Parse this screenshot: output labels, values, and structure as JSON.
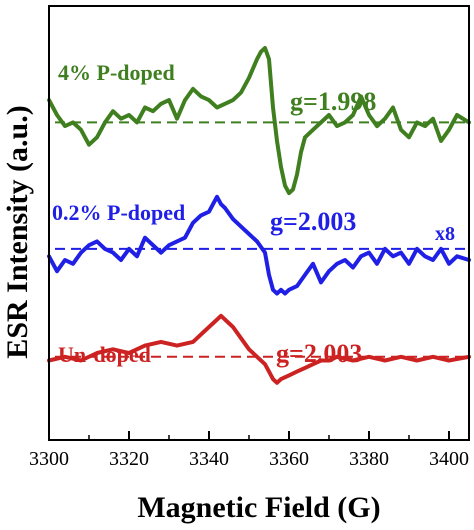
{
  "chart_data": {
    "type": "line",
    "xlabel": "Magnetic Field (G)",
    "ylabel": "ESR Intensity (a.u.)",
    "xlim": [
      3300,
      3405
    ],
    "x_ticks": [
      3300,
      3320,
      3340,
      3360,
      3380,
      3400
    ],
    "x_tick_labels": [
      "3300",
      "3320",
      "3340",
      "3360",
      "3380",
      "3400"
    ],
    "y_ticks_shown": false,
    "grid": false,
    "baseline_style": "dashed",
    "series": [
      {
        "name": "4% P-doped",
        "color": "#3f7f1f",
        "baseline": 0.8,
        "annotation": "g=1.998",
        "x": [
          3300,
          3302,
          3304,
          3306,
          3308,
          3310,
          3312,
          3314,
          3316,
          3318,
          3320,
          3322,
          3324,
          3326,
          3328,
          3330,
          3332,
          3334,
          3336,
          3338,
          3340,
          3342,
          3344,
          3346,
          3348,
          3350,
          3352,
          3353,
          3354,
          3355,
          3356,
          3357,
          3358,
          3359,
          3360,
          3361,
          3362,
          3363,
          3364,
          3366,
          3368,
          3370,
          3372,
          3374,
          3376,
          3378,
          3380,
          3382,
          3384,
          3386,
          3388,
          3390,
          3392,
          3394,
          3396,
          3398,
          3400,
          3402,
          3405
        ],
        "y": [
          0.86,
          0.82,
          0.79,
          0.8,
          0.78,
          0.74,
          0.76,
          0.8,
          0.83,
          0.81,
          0.82,
          0.8,
          0.84,
          0.83,
          0.85,
          0.86,
          0.81,
          0.86,
          0.89,
          0.87,
          0.86,
          0.84,
          0.85,
          0.86,
          0.88,
          0.92,
          0.97,
          0.99,
          1.0,
          0.97,
          0.84,
          0.75,
          0.68,
          0.63,
          0.61,
          0.62,
          0.66,
          0.72,
          0.76,
          0.78,
          0.8,
          0.82,
          0.79,
          0.8,
          0.82,
          0.87,
          0.82,
          0.79,
          0.81,
          0.84,
          0.78,
          0.76,
          0.8,
          0.79,
          0.81,
          0.75,
          0.78,
          0.82,
          0.8
        ]
      },
      {
        "name": "0.2% P-doped",
        "color": "#1f1fe6",
        "baseline": 0.46,
        "annotation": "g=2.003",
        "scale_label": "x8",
        "x": [
          3300,
          3302,
          3304,
          3306,
          3308,
          3310,
          3312,
          3314,
          3316,
          3318,
          3320,
          3322,
          3324,
          3326,
          3328,
          3330,
          3332,
          3334,
          3336,
          3338,
          3340,
          3341,
          3342,
          3343,
          3344,
          3346,
          3348,
          3350,
          3352,
          3354,
          3355,
          3356,
          3357,
          3358,
          3359,
          3360,
          3362,
          3364,
          3366,
          3368,
          3370,
          3372,
          3374,
          3376,
          3378,
          3380,
          3382,
          3384,
          3386,
          3388,
          3390,
          3392,
          3394,
          3396,
          3398,
          3400,
          3402,
          3405
        ],
        "y": [
          0.44,
          0.4,
          0.43,
          0.42,
          0.45,
          0.47,
          0.48,
          0.46,
          0.45,
          0.43,
          0.46,
          0.44,
          0.49,
          0.47,
          0.45,
          0.47,
          0.48,
          0.49,
          0.53,
          0.55,
          0.56,
          0.58,
          0.6,
          0.58,
          0.57,
          0.54,
          0.52,
          0.5,
          0.48,
          0.45,
          0.39,
          0.35,
          0.34,
          0.35,
          0.34,
          0.35,
          0.36,
          0.39,
          0.42,
          0.37,
          0.4,
          0.42,
          0.43,
          0.41,
          0.44,
          0.45,
          0.42,
          0.46,
          0.44,
          0.45,
          0.42,
          0.46,
          0.44,
          0.43,
          0.46,
          0.42,
          0.44,
          0.43
        ]
      },
      {
        "name": "Un-doped",
        "color": "#cc2222",
        "baseline": 0.17,
        "annotation": "g=2.003",
        "x": [
          3300,
          3304,
          3308,
          3312,
          3316,
          3320,
          3324,
          3328,
          3332,
          3336,
          3338,
          3340,
          3342,
          3343,
          3344,
          3346,
          3348,
          3350,
          3352,
          3354,
          3355,
          3356,
          3357,
          3358,
          3360,
          3362,
          3364,
          3366,
          3368,
          3370,
          3372,
          3376,
          3380,
          3384,
          3388,
          3392,
          3396,
          3400,
          3405
        ],
        "y": [
          0.16,
          0.17,
          0.16,
          0.18,
          0.19,
          0.18,
          0.2,
          0.21,
          0.2,
          0.21,
          0.23,
          0.25,
          0.27,
          0.28,
          0.27,
          0.25,
          0.22,
          0.19,
          0.17,
          0.15,
          0.13,
          0.11,
          0.1,
          0.11,
          0.12,
          0.13,
          0.14,
          0.15,
          0.16,
          0.16,
          0.17,
          0.16,
          0.17,
          0.16,
          0.17,
          0.16,
          0.17,
          0.16,
          0.17
        ]
      }
    ]
  }
}
